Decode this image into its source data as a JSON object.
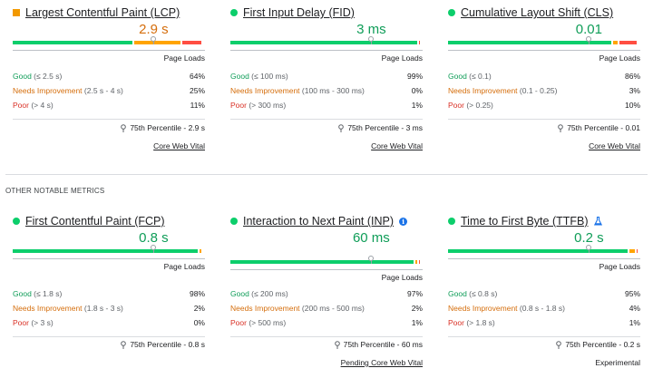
{
  "colors": {
    "good": "#0cce6b",
    "needs": "#ffa400",
    "poor": "#ff4e42",
    "track": "#e8eaed"
  },
  "core_metrics": [
    {
      "title": "Largest Contentful Paint (LCP)",
      "icon": "square-orange-icon",
      "value": "2.9 s",
      "value_status": "avg",
      "page_loads": "Page Loads",
      "distribution": {
        "good": 64,
        "needs": 25,
        "poor": 11
      },
      "marker_fraction": 0.74,
      "rows": [
        {
          "label": "Good",
          "range": " (≤ 2.5 s)",
          "pct": "64%"
        },
        {
          "label": "Needs Improvement",
          "range": " (2.5 s - 4 s)",
          "pct": "25%"
        },
        {
          "label": "Poor",
          "range": " (> 4 s)",
          "pct": "11%"
        }
      ],
      "percentile": "75th Percentile - 2.9 s",
      "footer": "Core Web Vital",
      "footer_link": true
    },
    {
      "title": "First Input Delay (FID)",
      "icon": "green-dot-icon",
      "value": "3 ms",
      "value_status": "good",
      "page_loads": "Page Loads",
      "distribution": {
        "good": 99,
        "needs": 0,
        "poor": 1
      },
      "marker_fraction": 0.74,
      "rows": [
        {
          "label": "Good",
          "range": " (≤ 100 ms)",
          "pct": "99%"
        },
        {
          "label": "Needs Improvement",
          "range": " (100 ms - 300 ms)",
          "pct": "0%"
        },
        {
          "label": "Poor",
          "range": " (> 300 ms)",
          "pct": "1%"
        }
      ],
      "percentile": "75th Percentile - 3 ms",
      "footer": "Core Web Vital",
      "footer_link": true
    },
    {
      "title": "Cumulative Layout Shift (CLS)",
      "icon": "green-dot-icon",
      "value": "0.01",
      "value_status": "good",
      "page_loads": "Page Loads",
      "distribution": {
        "good": 86,
        "needs": 3,
        "poor": 10
      },
      "marker_fraction": 0.74,
      "rows": [
        {
          "label": "Good",
          "range": " (≤ 0.1)",
          "pct": "86%"
        },
        {
          "label": "Needs Improvement",
          "range": " (0.1 - 0.25)",
          "pct": "3%"
        },
        {
          "label": "Poor",
          "range": " (> 0.25)",
          "pct": "10%"
        }
      ],
      "percentile": "75th Percentile - 0.01",
      "footer": "Core Web Vital",
      "footer_link": true
    }
  ],
  "section_heading": "OTHER NOTABLE METRICS",
  "other_metrics": [
    {
      "title": "First Contentful Paint (FCP)",
      "icon": "green-dot-icon",
      "value": "0.8 s",
      "value_status": "good",
      "page_loads": "Page Loads",
      "distribution": {
        "good": 98,
        "needs": 2,
        "poor": 0
      },
      "marker_fraction": 0.74,
      "rows": [
        {
          "label": "Good",
          "range": " (≤ 1.8 s)",
          "pct": "98%"
        },
        {
          "label": "Needs Improvement",
          "range": " (1.8 s - 3 s)",
          "pct": "2%"
        },
        {
          "label": "Poor",
          "range": " (> 3 s)",
          "pct": "0%"
        }
      ],
      "percentile": "75th Percentile - 0.8 s",
      "footer": "",
      "footer_link": false
    },
    {
      "title": "Interaction to Next Paint (INP)",
      "icon": "green-dot-icon",
      "extra_icon": "info-icon",
      "value": "60 ms",
      "value_status": "good",
      "page_loads": "Page Loads",
      "distribution": {
        "good": 97,
        "needs": 2,
        "poor": 1
      },
      "marker_fraction": 0.74,
      "rows": [
        {
          "label": "Good",
          "range": " (≤ 200 ms)",
          "pct": "97%"
        },
        {
          "label": "Needs Improvement",
          "range": " (200 ms - 500 ms)",
          "pct": "2%"
        },
        {
          "label": "Poor",
          "range": " (> 500 ms)",
          "pct": "1%"
        }
      ],
      "percentile": "75th Percentile - 60 ms",
      "footer": "Pending Core Web Vital",
      "footer_link": true
    },
    {
      "title": "Time to First Byte (TTFB)",
      "icon": "green-dot-icon",
      "extra_icon": "flask-icon",
      "value": "0.2 s",
      "value_status": "good",
      "page_loads": "Page Loads",
      "distribution": {
        "good": 95,
        "needs": 4,
        "poor": 1
      },
      "marker_fraction": 0.74,
      "rows": [
        {
          "label": "Good",
          "range": " (≤ 0.8 s)",
          "pct": "95%"
        },
        {
          "label": "Needs Improvement",
          "range": " (0.8 s - 1.8 s)",
          "pct": "4%"
        },
        {
          "label": "Poor",
          "range": " (> 1.8 s)",
          "pct": "1%"
        }
      ],
      "percentile": "75th Percentile - 0.2 s",
      "footer": "Experimental",
      "footer_link": false
    }
  ]
}
